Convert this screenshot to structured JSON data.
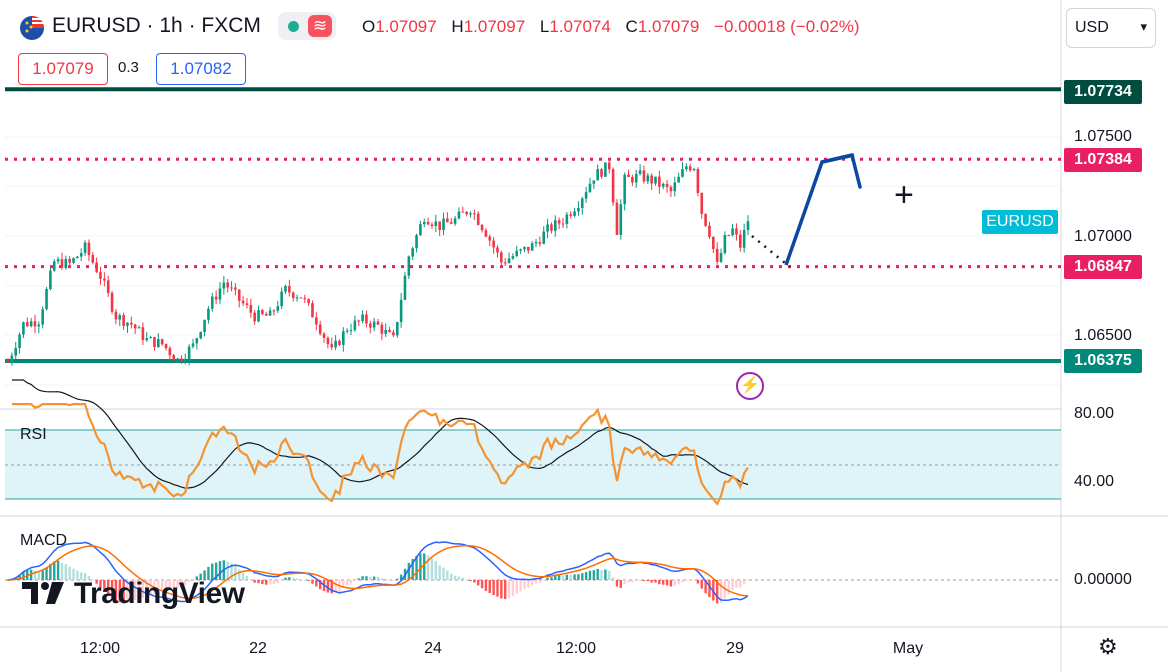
{
  "header": {
    "symbol": "EURUSD",
    "separator1": "·",
    "timeframe": "1h",
    "separator2": "·",
    "exchange": "FXCM",
    "wave_icon": "≋",
    "ohlc": {
      "o_label": "O",
      "o_value": "1.07097",
      "h_label": "H",
      "h_value": "1.07097",
      "l_label": "L",
      "l_value": "1.07074",
      "c_label": "C",
      "c_value": "1.07079",
      "change": "−0.00018 (−0.02%)"
    },
    "bid": "1.07079",
    "spread": "0.3",
    "ask": "1.07082"
  },
  "currency_selector": {
    "value": "USD",
    "icon": "chevron-down-icon"
  },
  "price_axis": {
    "ticks": [
      {
        "label": "1.07500",
        "value": 1.075
      },
      {
        "label": "1.07000",
        "value": 1.07
      },
      {
        "label": "1.06500",
        "value": 1.065
      }
    ],
    "levels": [
      {
        "label": "1.07734",
        "value": 1.07734,
        "color": "#004d40",
        "style": "solid"
      },
      {
        "label": "1.07384",
        "value": 1.07384,
        "color": "#e91e63",
        "style": "dotted"
      },
      {
        "label": "1.06847",
        "value": 1.06847,
        "color": "#e91e63",
        "style": "dotted"
      },
      {
        "label": "1.06375",
        "value": 1.06375,
        "color": "#00897b",
        "style": "solid"
      }
    ],
    "symbol_tag": "EURUSD"
  },
  "rsi": {
    "title": "RSI",
    "ticks": [
      {
        "label": "80.00",
        "value": 80
      },
      {
        "label": "40.00",
        "value": 40
      }
    ],
    "band": [
      30,
      70
    ]
  },
  "macd": {
    "title": "MACD",
    "tick": "0.00000"
  },
  "time_axis": {
    "labels": [
      "12:00",
      "22",
      "24",
      "12:00",
      "29",
      "May"
    ]
  },
  "logo": {
    "icon": "tradingview-logo-icon",
    "text": "TradingView"
  },
  "colors": {
    "up": "#089981",
    "down": "#f23645",
    "accent": "#2962ff",
    "rsi_line": "#f59331",
    "macd_line": "#2962ff",
    "signal_line": "#ff6d00",
    "arrow": "#0d47a1"
  },
  "chart_data": {
    "type": "candlestick",
    "instrument": "EURUSD",
    "timeframe": "1h",
    "ylim": [
      1.0615,
      1.0782
    ],
    "last_close": 1.07079,
    "path_points": [
      [
        0,
        1.0637
      ],
      [
        4,
        1.0656
      ],
      [
        8,
        1.0658
      ],
      [
        12,
        1.0687
      ],
      [
        16,
        1.0686
      ],
      [
        20,
        1.0694
      ],
      [
        24,
        1.068
      ],
      [
        28,
        1.066
      ],
      [
        32,
        1.0656
      ],
      [
        36,
        1.0648
      ],
      [
        40,
        1.0646
      ],
      [
        44,
        1.0638
      ],
      [
        48,
        1.0645
      ],
      [
        52,
        1.0664
      ],
      [
        56,
        1.0677
      ],
      [
        60,
        1.0668
      ],
      [
        64,
        1.066
      ],
      [
        68,
        1.066
      ],
      [
        72,
        1.0673
      ],
      [
        76,
        1.067
      ],
      [
        80,
        1.0658
      ],
      [
        84,
        1.0642
      ],
      [
        88,
        1.0654
      ],
      [
        92,
        1.0658
      ],
      [
        96,
        1.0655
      ],
      [
        100,
        1.0648
      ],
      [
        104,
        1.069
      ],
      [
        108,
        1.071
      ],
      [
        112,
        1.0705
      ],
      [
        116,
        1.0708
      ],
      [
        120,
        1.0714
      ],
      [
        124,
        1.0702
      ],
      [
        128,
        1.0687
      ],
      [
        132,
        1.0691
      ],
      [
        136,
        1.0695
      ],
      [
        140,
        1.0703
      ],
      [
        144,
        1.0708
      ],
      [
        148,
        1.0717
      ],
      [
        152,
        1.073
      ],
      [
        156,
        1.0735
      ],
      [
        158,
        1.0703
      ],
      [
        160,
        1.0728
      ],
      [
        164,
        1.073
      ],
      [
        168,
        1.0727
      ],
      [
        172,
        1.0722
      ],
      [
        176,
        1.0735
      ],
      [
        178,
        1.0735
      ],
      [
        180,
        1.0712
      ],
      [
        182,
        1.0702
      ],
      [
        184,
        1.0685
      ],
      [
        186,
        1.0698
      ],
      [
        188,
        1.0703
      ],
      [
        190,
        1.0695
      ],
      [
        192,
        1.0708
      ]
    ],
    "rsi_levels": [
      30,
      70
    ],
    "macd_zero": 0
  },
  "annotations": {
    "bolt_icon": "⚡",
    "crosshair_icon": "+",
    "settings_icon": "⚙"
  }
}
